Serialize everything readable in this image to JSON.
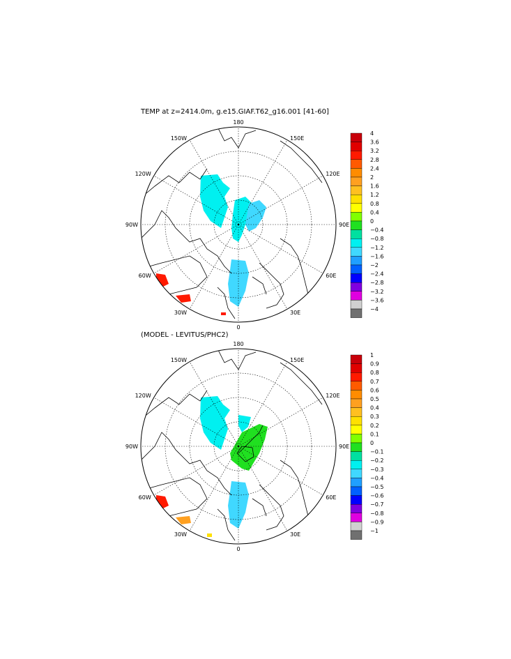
{
  "chart_data": [
    {
      "type": "contour-map",
      "title": "TEMP at z=2414.0m, g.e15.GIAF.T62_g16.001 [41-60]",
      "projection": "north-polar-stereographic",
      "lon_labels": {
        "top": "180",
        "bottom": "0",
        "left": "90W",
        "right": "90E",
        "ul1": "150W",
        "ul2": "120W",
        "ur1": "150E",
        "ur2": "120E",
        "ll": "60W",
        "ll2": "30W",
        "lr": "60E",
        "lr2": "30E"
      },
      "colorbar_labels": [
        "4",
        "3.6",
        "3.2",
        "2.8",
        "2.4",
        "2",
        "1.6",
        "1.2",
        "0.8",
        "0.4",
        "0",
        "−0.4",
        "−0.8",
        "−1.2",
        "−1.6",
        "−2",
        "−2.4",
        "−2.8",
        "−3.2",
        "−3.6",
        "−4"
      ],
      "colorbar_colors": [
        "#c8000a",
        "#e00000",
        "#ff1a00",
        "#ff5a00",
        "#ff8c00",
        "#ffa020",
        "#ffc020",
        "#ffe000",
        "#ffff00",
        "#80ff00",
        "#20e020",
        "#00e0a0",
        "#00f0f0",
        "#40d8ff",
        "#20a0ff",
        "#0060ff",
        "#0000ff",
        "#8000e0",
        "#e000e0",
        "#d0d0d0",
        "#707070"
      ]
    },
    {
      "type": "contour-map",
      "title": "(MODEL - LEVITUS/PHC2)",
      "projection": "north-polar-stereographic",
      "lon_labels": {
        "top": "180",
        "bottom": "0",
        "left": "90W",
        "right": "90E",
        "ul1": "150W",
        "ul2": "120W",
        "ur1": "150E",
        "ur2": "120E",
        "ll": "60W",
        "ll2": "30W",
        "lr": "60E",
        "lr2": "30E"
      },
      "colorbar_labels": [
        "1",
        "0.9",
        "0.8",
        "0.7",
        "0.6",
        "0.5",
        "0.4",
        "0.3",
        "0.2",
        "0.1",
        "0",
        "−0.1",
        "−0.2",
        "−0.3",
        "−0.4",
        "−0.5",
        "−0.6",
        "−0.7",
        "−0.8",
        "−0.9",
        "−1"
      ],
      "colorbar_colors": [
        "#c8000a",
        "#e00000",
        "#ff1a00",
        "#ff5a00",
        "#ff8c00",
        "#ffa020",
        "#ffc020",
        "#ffe000",
        "#ffff00",
        "#80ff00",
        "#20e020",
        "#00e0a0",
        "#00f0f0",
        "#40d8ff",
        "#20a0ff",
        "#0060ff",
        "#0000ff",
        "#8000e0",
        "#e000e0",
        "#d0d0d0",
        "#707070"
      ]
    }
  ]
}
